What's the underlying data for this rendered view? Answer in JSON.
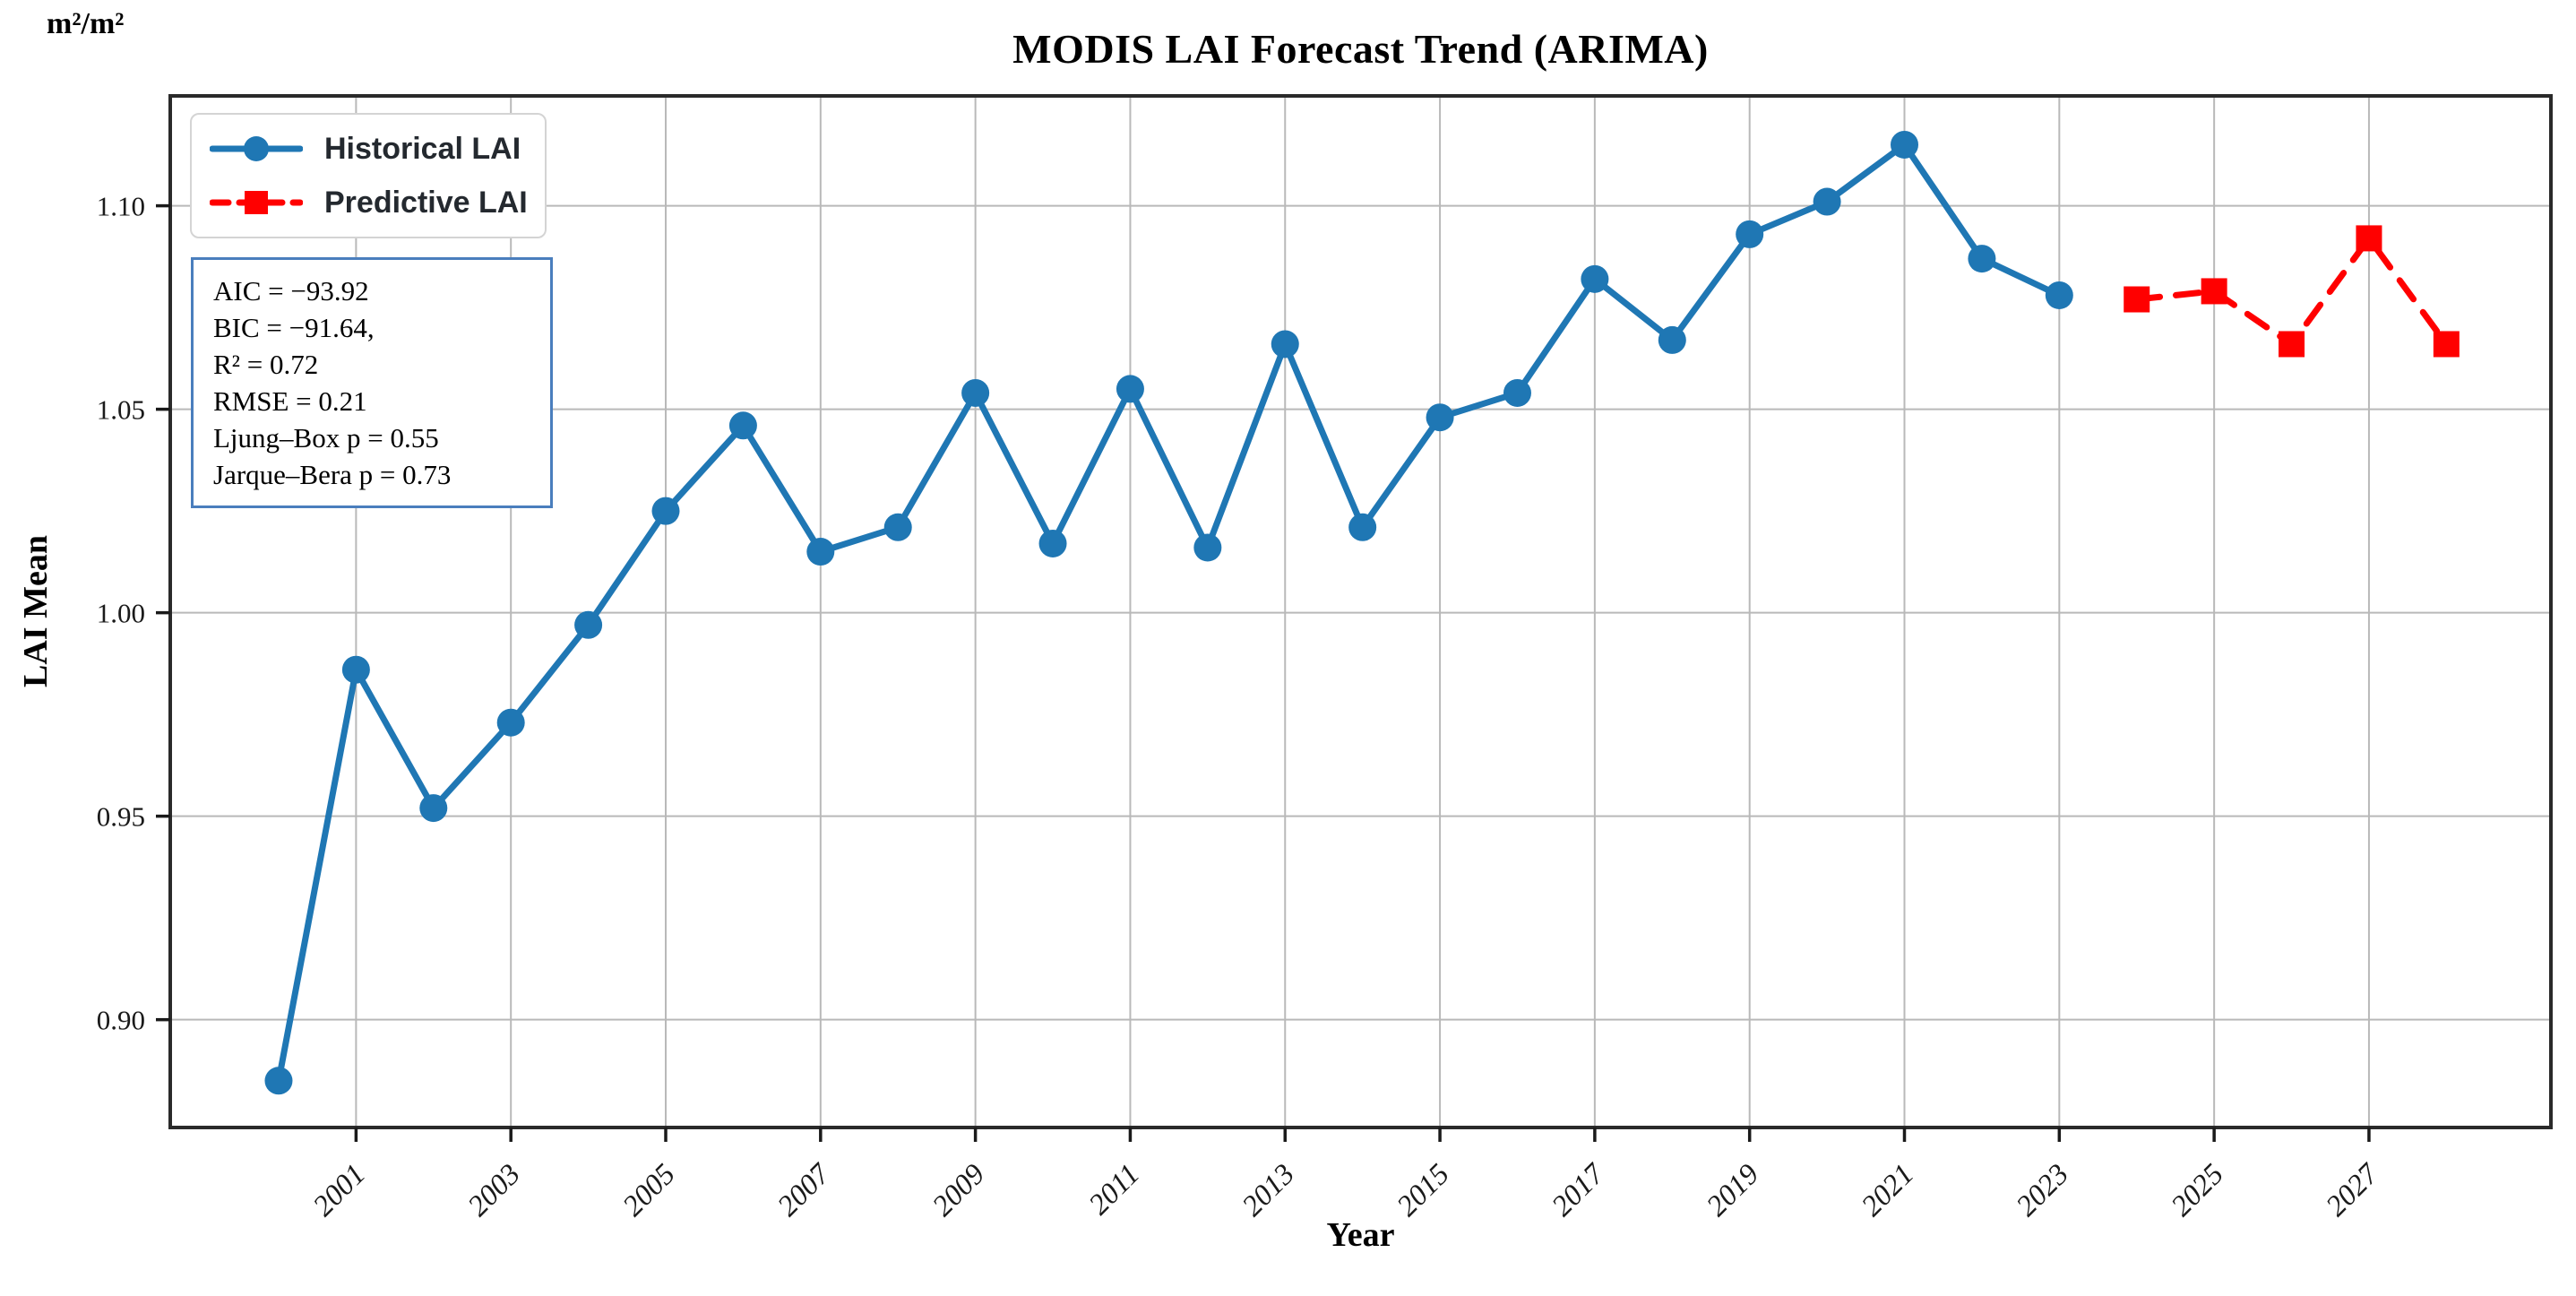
{
  "chart_data": {
    "type": "line",
    "title": "MODIS LAI Forecast Trend (ARIMA)",
    "xlabel": "Year",
    "ylabel": "LAI Mean",
    "y_unit": "m²/m²",
    "grid": true,
    "legend_position": "upper left",
    "x_ticks": [
      "2001",
      "2003",
      "2005",
      "2007",
      "2009",
      "2011",
      "2013",
      "2015",
      "2017",
      "2019",
      "2021",
      "2023",
      "2025",
      "2027"
    ],
    "y_ticks": [
      "0.90",
      "0.95",
      "1.00",
      "1.05",
      "1.10"
    ],
    "xlim": [
      1998.6,
      2029.35
    ],
    "ylim": [
      0.8735,
      1.127
    ],
    "annotation": {
      "lines": [
        "AIC = −93.92",
        "BIC = −91.64,",
        "R² = 0.72",
        "RMSE = 0.21",
        "Ljung–Box p = 0.55",
        "Jarque–Bera p = 0.73"
      ]
    },
    "series": [
      {
        "name": "Historical LAI",
        "color": "#1f77b4",
        "marker": "circle",
        "line_style": "solid",
        "x": [
          2000,
          2001,
          2002,
          2003,
          2004,
          2005,
          2006,
          2007,
          2008,
          2009,
          2010,
          2011,
          2012,
          2013,
          2014,
          2015,
          2016,
          2017,
          2018,
          2019,
          2020,
          2021,
          2022,
          2023
        ],
        "values": [
          0.885,
          0.986,
          0.952,
          0.973,
          0.997,
          1.025,
          1.046,
          1.015,
          1.021,
          1.054,
          1.017,
          1.055,
          1.016,
          1.066,
          1.021,
          1.048,
          1.054,
          1.082,
          1.067,
          1.093,
          1.101,
          1.115,
          1.087,
          1.078
        ]
      },
      {
        "name": "Predictive LAI",
        "color": "#ff0000",
        "marker": "square",
        "line_style": "dashed",
        "x": [
          2024,
          2025,
          2026,
          2027,
          2028
        ],
        "values": [
          1.077,
          1.079,
          1.066,
          1.092,
          1.066
        ]
      }
    ]
  },
  "colors": {
    "grid": "#b9b9b9",
    "spine": "#2a2a2a",
    "tick": "#1a1a1a",
    "stats_border": "#4a7ebd",
    "legend_border": "#d4d4d4",
    "historical": "#1f77b4",
    "predictive": "#ff0000"
  }
}
